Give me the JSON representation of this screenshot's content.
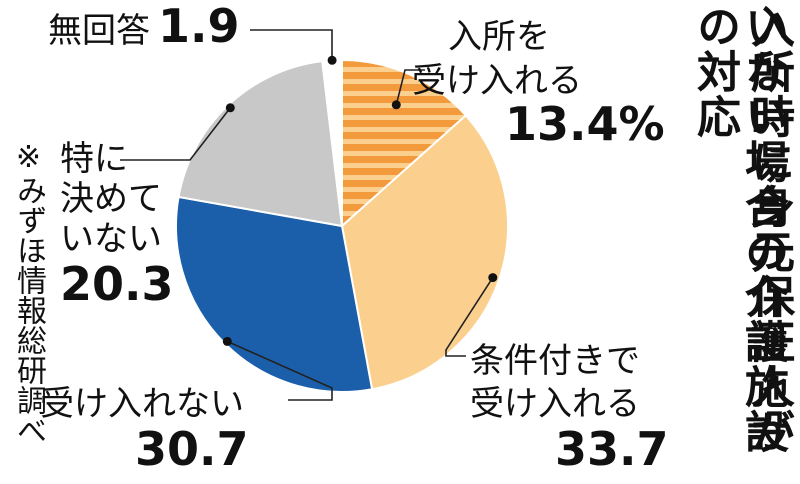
{
  "chart_data": {
    "type": "pie",
    "title_lines": [
      "入所時に身元保証人が",
      "いない場合の介護施設の対応"
    ],
    "source": "※みずほ情報総研調べ",
    "slices": [
      {
        "label_lines": [
          "入所を",
          "受け入れる"
        ],
        "value": 13.4,
        "display": "13.4%",
        "color": "#F39A3C",
        "pattern": "stripes"
      },
      {
        "label_lines": [
          "条件付きで",
          "受け入れる"
        ],
        "value": 33.7,
        "display": "33.7",
        "color": "#FBD08E"
      },
      {
        "label_lines": [
          "受け入れない"
        ],
        "value": 30.7,
        "display": "30.7",
        "color": "#1B5FAB"
      },
      {
        "label_lines": [
          "特に",
          "決めて",
          "いない"
        ],
        "value": 20.3,
        "display": "20.3",
        "color": "#C8C8C8"
      },
      {
        "label_lines": [
          "無回答"
        ],
        "value": 1.9,
        "display": "1.9",
        "color": "#FFFFFF"
      }
    ]
  }
}
